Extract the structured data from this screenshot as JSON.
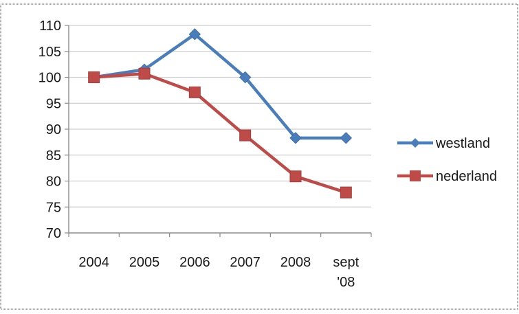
{
  "chart_data": {
    "type": "line",
    "categories": [
      "2004",
      "2005",
      "2006",
      "2007",
      "2008",
      "sept '08"
    ],
    "series": [
      {
        "name": "westland",
        "values": [
          100,
          101.5,
          108.3,
          100,
          88.3,
          88.3
        ],
        "color": "#4a7ebb",
        "marker": "diamond"
      },
      {
        "name": "nederland",
        "values": [
          100,
          100.7,
          97.1,
          88.8,
          80.9,
          77.8
        ],
        "color": "#be4b48",
        "marker": "square"
      }
    ],
    "ylim": [
      70,
      110
    ],
    "yticks": [
      70,
      75,
      80,
      85,
      90,
      95,
      100,
      105,
      110
    ],
    "grid": true,
    "legend_position": "right"
  }
}
